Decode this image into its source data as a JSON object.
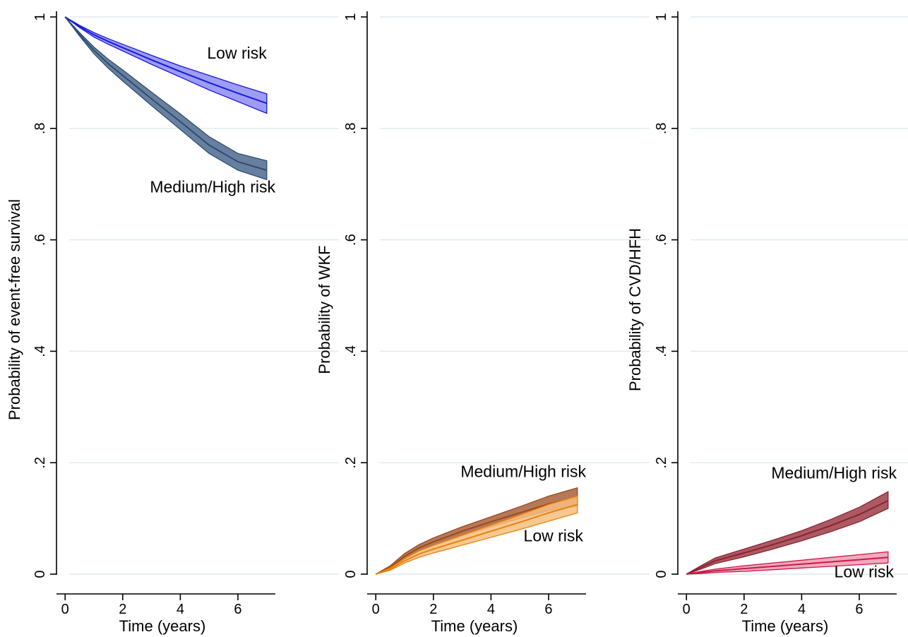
{
  "chart_data": [
    {
      "type": "line",
      "title": "",
      "xlabel": "Time (years)",
      "ylabel": "Probability of event-free survival",
      "xlim": [
        -0.3,
        7.3
      ],
      "ylim": [
        0,
        1
      ],
      "xticks": [
        0,
        2,
        4,
        6
      ],
      "xtick_labels": [
        "0",
        "2",
        "4",
        "6"
      ],
      "yticks": [
        0,
        0.2,
        0.4,
        0.6,
        0.8,
        1
      ],
      "ytick_labels": [
        "0",
        ".2",
        ".4",
        ".6",
        ".8",
        "1"
      ],
      "grid": true,
      "series": [
        {
          "name": "Low risk",
          "color": "#1a1adb",
          "band_color": "#8c8cf2",
          "x": [
            0,
            0.5,
            1,
            1.5,
            2,
            3,
            4,
            5,
            6,
            7
          ],
          "y": [
            1.0,
            0.983,
            0.968,
            0.956,
            0.945,
            0.923,
            0.902,
            0.882,
            0.863,
            0.845
          ],
          "lower": [
            1.0,
            0.981,
            0.964,
            0.951,
            0.939,
            0.915,
            0.892,
            0.869,
            0.848,
            0.827
          ],
          "upper": [
            1.0,
            0.985,
            0.972,
            0.961,
            0.951,
            0.931,
            0.912,
            0.895,
            0.878,
            0.862
          ]
        },
        {
          "name": "Medium/High risk",
          "color": "#2f4d72",
          "band_color": "#4e6a8e",
          "x": [
            0,
            0.5,
            1,
            1.5,
            2,
            3,
            4,
            5,
            6,
            7
          ],
          "y": [
            1.0,
            0.969,
            0.94,
            0.916,
            0.895,
            0.853,
            0.812,
            0.77,
            0.74,
            0.725
          ],
          "lower": [
            1.0,
            0.966,
            0.934,
            0.908,
            0.885,
            0.841,
            0.798,
            0.755,
            0.725,
            0.708
          ],
          "upper": [
            1.0,
            0.972,
            0.946,
            0.924,
            0.905,
            0.865,
            0.826,
            0.785,
            0.755,
            0.742
          ]
        }
      ],
      "annotations": [
        {
          "text": "Low risk",
          "x": 7.0,
          "y": 0.925
        },
        {
          "text": "Medium/High risk",
          "x": 7.3,
          "y": 0.685
        }
      ]
    },
    {
      "type": "line",
      "title": "",
      "xlabel": "Time (years)",
      "ylabel": "Probability of WKF",
      "xlim": [
        -0.3,
        7.3
      ],
      "ylim": [
        0,
        1
      ],
      "xticks": [
        0,
        2,
        4,
        6
      ],
      "xtick_labels": [
        "0",
        "2",
        "4",
        "6"
      ],
      "yticks": [
        0,
        0.2,
        0.4,
        0.6,
        0.8,
        1
      ],
      "ytick_labels": [
        "0",
        ".2",
        ".4",
        ".6",
        ".8",
        "1"
      ],
      "grid": true,
      "series": [
        {
          "name": "Medium/High risk",
          "color": "#9c4a1e",
          "band_color": "#a8613a",
          "x": [
            0,
            0.5,
            1,
            1.5,
            2,
            3,
            4,
            5,
            6,
            7
          ],
          "y": [
            0,
            0.012,
            0.032,
            0.047,
            0.058,
            0.077,
            0.094,
            0.11,
            0.126,
            0.138
          ],
          "lower": [
            0,
            0.009,
            0.027,
            0.041,
            0.051,
            0.069,
            0.085,
            0.1,
            0.114,
            0.122
          ],
          "upper": [
            0,
            0.015,
            0.037,
            0.053,
            0.065,
            0.085,
            0.103,
            0.121,
            0.14,
            0.155
          ]
        },
        {
          "name": "Low risk",
          "color": "#e8820e",
          "band_color": "#f7be7e",
          "x": [
            0,
            0.5,
            1,
            1.5,
            2,
            3,
            4,
            5,
            6,
            7
          ],
          "y": [
            0,
            0.009,
            0.024,
            0.036,
            0.045,
            0.061,
            0.077,
            0.093,
            0.11,
            0.125
          ],
          "lower": [
            0,
            0.007,
            0.02,
            0.03,
            0.038,
            0.052,
            0.066,
            0.08,
            0.095,
            0.11
          ],
          "upper": [
            0,
            0.011,
            0.028,
            0.042,
            0.052,
            0.07,
            0.088,
            0.106,
            0.125,
            0.14
          ]
        }
      ],
      "annotations": [
        {
          "text": "Medium/High risk",
          "x": 7.3,
          "y": 0.174
        },
        {
          "text": "Low risk",
          "x": 7.2,
          "y": 0.059
        }
      ]
    },
    {
      "type": "line",
      "title": "",
      "xlabel": "Time (years)",
      "ylabel": "Probability of CVD/HFH",
      "xlim": [
        -0.3,
        7.3
      ],
      "ylim": [
        0,
        1
      ],
      "xticks": [
        0,
        2,
        4,
        6
      ],
      "xtick_labels": [
        "0",
        "2",
        "4",
        "6"
      ],
      "yticks": [
        0,
        0.2,
        0.4,
        0.6,
        0.8,
        1
      ],
      "ytick_labels": [
        "0",
        ".2",
        ".4",
        ".6",
        ".8",
        "1"
      ],
      "grid": true,
      "series": [
        {
          "name": "Medium/High risk",
          "color": "#8c2330",
          "band_color": "#9b3d48",
          "x": [
            0,
            0.5,
            1,
            1.5,
            2,
            3,
            4,
            5,
            6,
            7
          ],
          "y": [
            0,
            0.012,
            0.024,
            0.031,
            0.038,
            0.053,
            0.069,
            0.087,
            0.107,
            0.132
          ],
          "lower": [
            0,
            0.009,
            0.019,
            0.025,
            0.031,
            0.045,
            0.06,
            0.076,
            0.094,
            0.118
          ],
          "upper": [
            0,
            0.015,
            0.029,
            0.037,
            0.045,
            0.061,
            0.078,
            0.098,
            0.12,
            0.148
          ]
        },
        {
          "name": "Low risk",
          "color": "#cc1a4a",
          "band_color": "#ee9ab0",
          "x": [
            0,
            0.5,
            1,
            1.5,
            2,
            3,
            4,
            5,
            6,
            7
          ],
          "y": [
            0,
            0.003,
            0.006,
            0.008,
            0.01,
            0.014,
            0.018,
            0.022,
            0.026,
            0.03
          ],
          "lower": [
            0,
            0.001,
            0.003,
            0.004,
            0.005,
            0.008,
            0.011,
            0.014,
            0.017,
            0.02
          ],
          "upper": [
            0,
            0.005,
            0.009,
            0.012,
            0.015,
            0.02,
            0.025,
            0.03,
            0.035,
            0.04
          ]
        }
      ],
      "annotations": [
        {
          "text": "Medium/High risk",
          "x": 7.3,
          "y": 0.172
        },
        {
          "text": "Low risk",
          "x": 7.2,
          "y": -0.006
        }
      ]
    }
  ]
}
